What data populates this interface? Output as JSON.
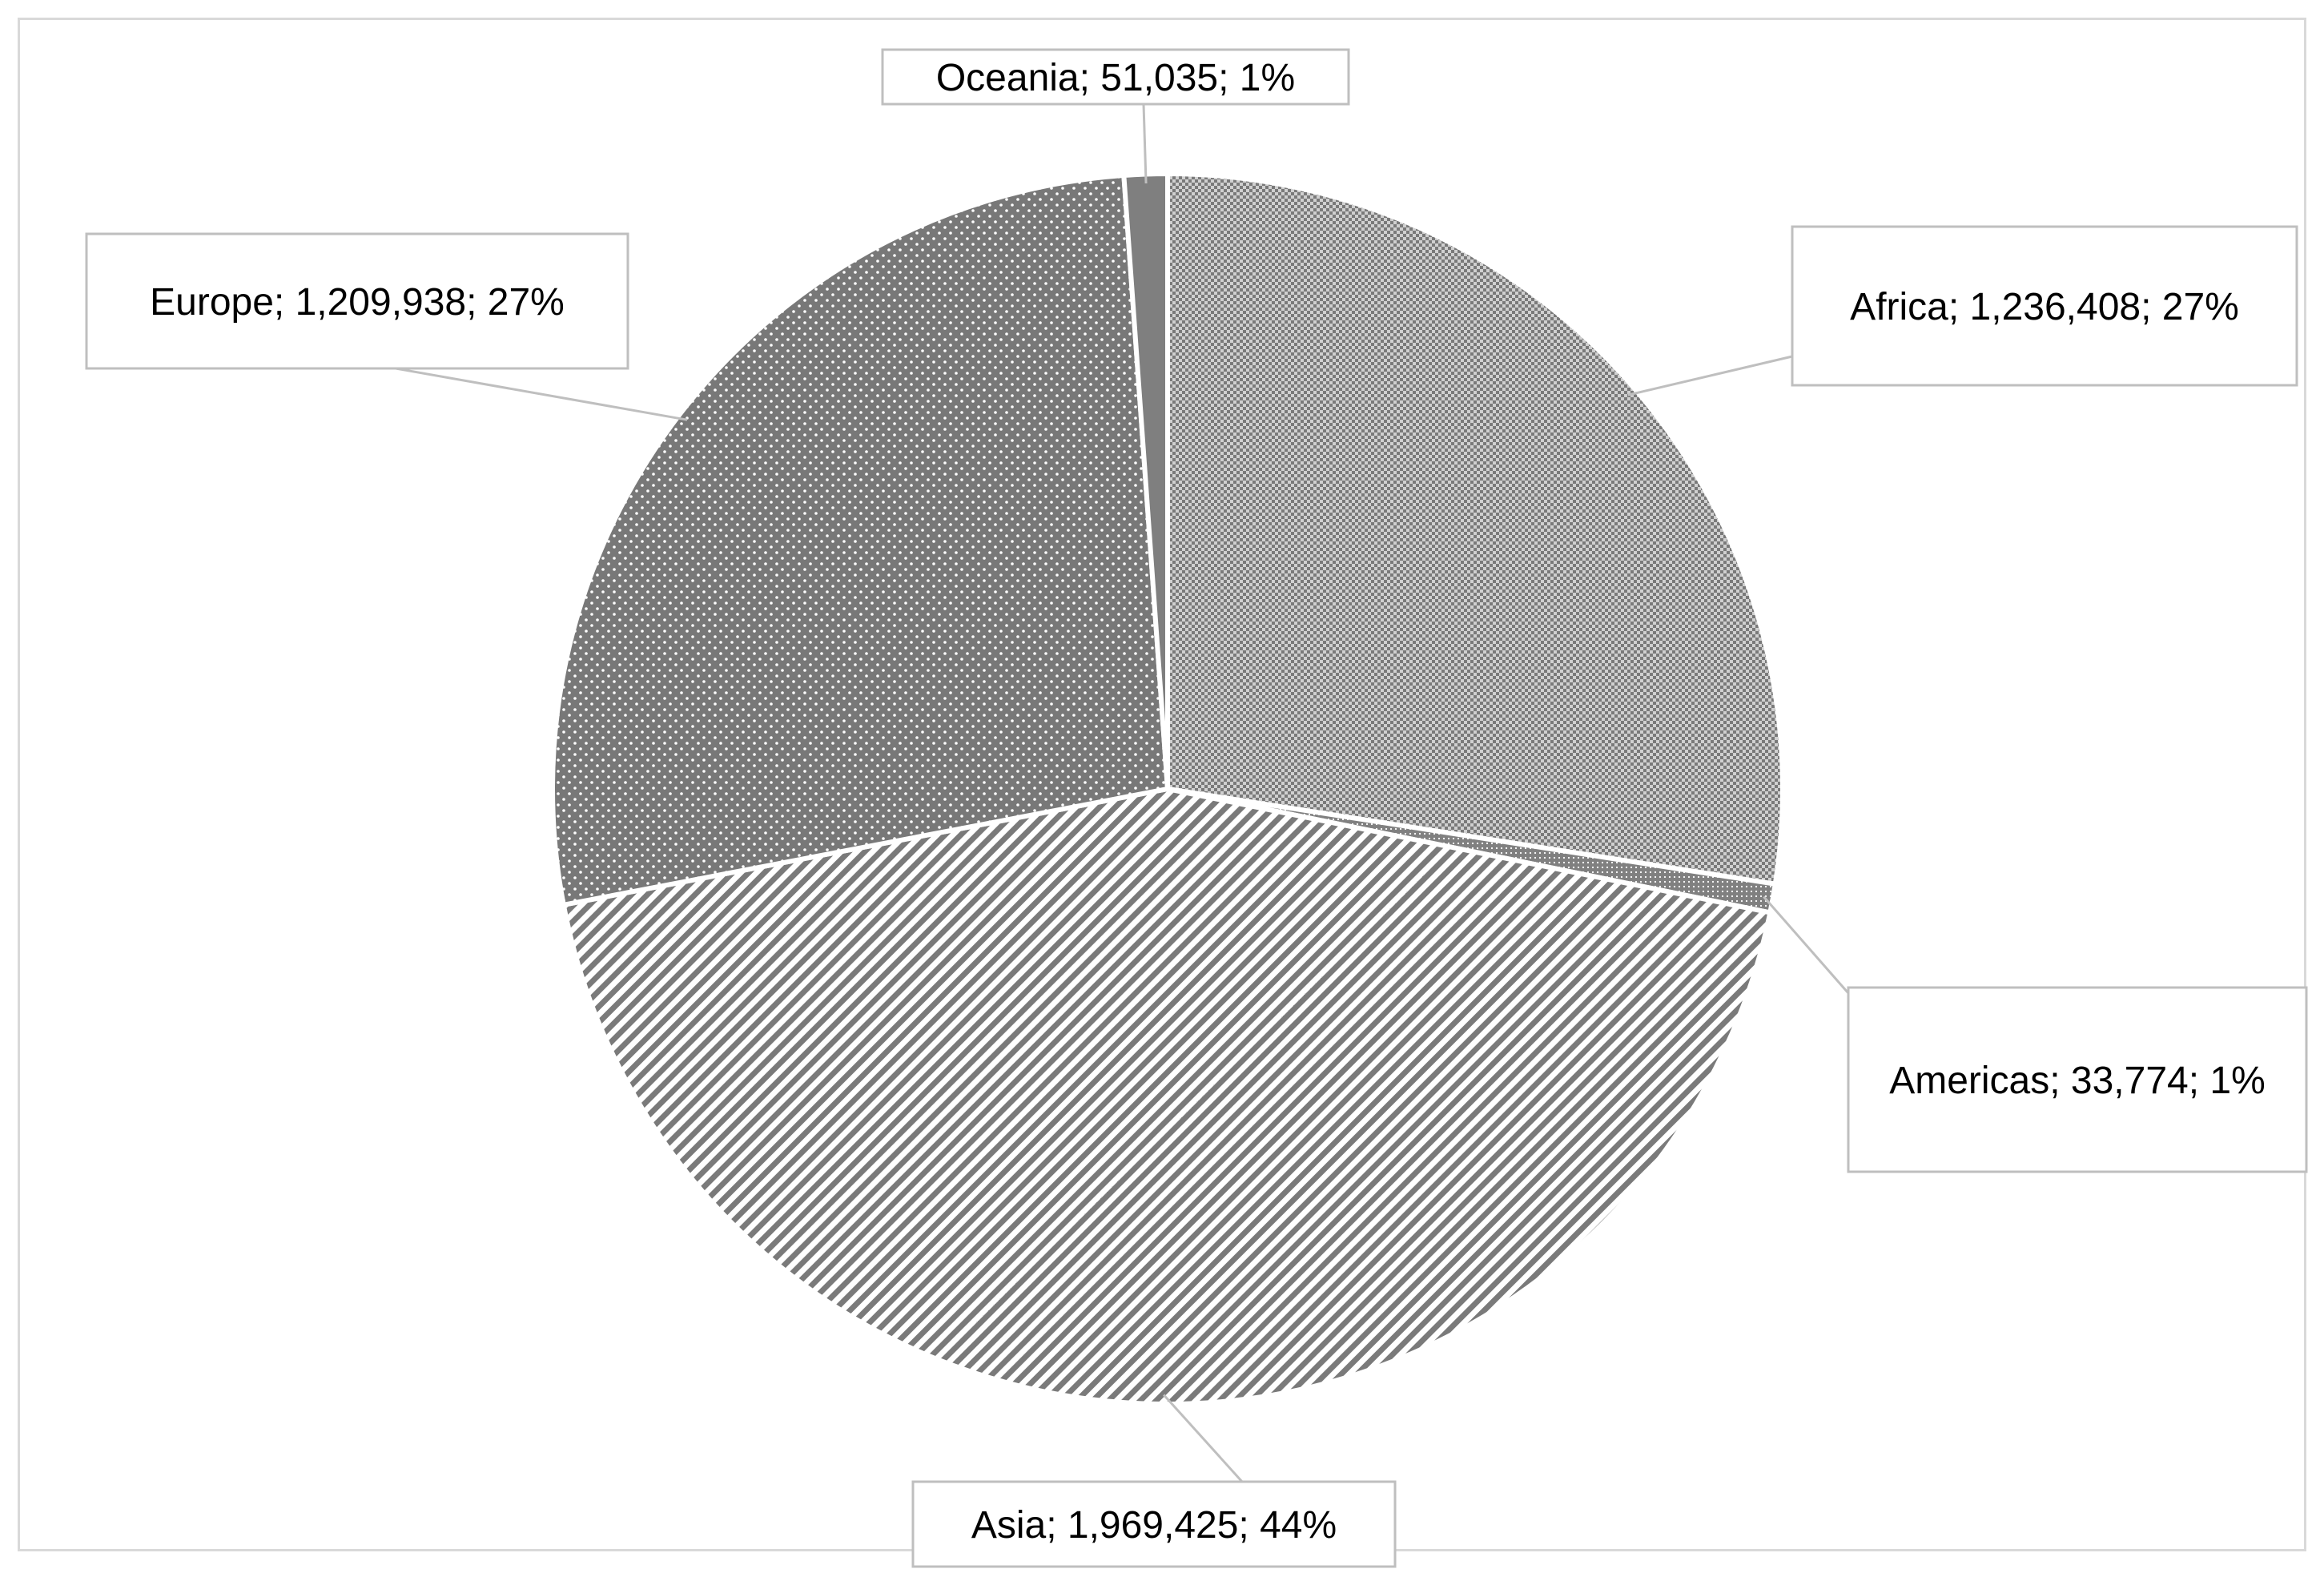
{
  "chart_data": {
    "type": "pie",
    "title": "",
    "start_angle_deg": 0,
    "direction": "clockwise",
    "slices": [
      {
        "name": "Africa",
        "value": 1236408,
        "percent": "27%",
        "label": "Africa; 1,236,408; 27%",
        "pattern": "checker"
      },
      {
        "name": "Americas",
        "value": 33774,
        "percent": "1%",
        "label": "Americas; 33,774; 1%",
        "pattern": "fine-dots"
      },
      {
        "name": "Asia",
        "value": 1969425,
        "percent": "44%",
        "label": "Asia; 1,969,425; 44%",
        "pattern": "diagonal-stripes"
      },
      {
        "name": "Europe",
        "value": 1209938,
        "percent": "27%",
        "label": "Europe; 1,209,938; 27%",
        "pattern": "dots"
      },
      {
        "name": "Oceania",
        "value": 51035,
        "percent": "1%",
        "label": "Oceania; 51,035; 1%",
        "pattern": "solid"
      }
    ],
    "legend": "none",
    "data_labels": "callouts",
    "colors": {
      "slice_fill": "#808080",
      "slice_dark": "#6e6e6e",
      "slice_light": "#ffffff",
      "border": "#ffffff",
      "leader": "#bfbfbf",
      "frame": "#d9d9d9"
    }
  }
}
